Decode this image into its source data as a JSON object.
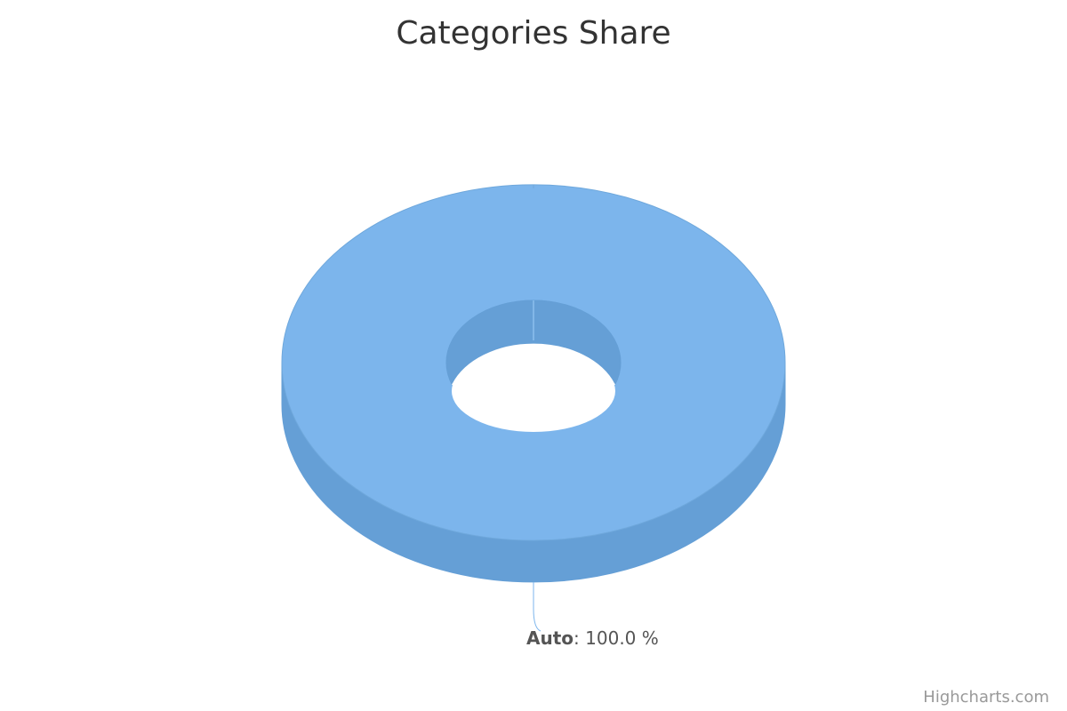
{
  "chart_data": {
    "type": "pie",
    "title": "Categories Share",
    "variant": "3d-donut",
    "slices": [
      {
        "name": "Auto",
        "value": 100.0,
        "label_value": "100.0 %",
        "color": "#7cb5ec",
        "side_color": "#659fd6"
      }
    ],
    "show_legend": false
  },
  "credits": {
    "text": "Highcharts.com"
  }
}
